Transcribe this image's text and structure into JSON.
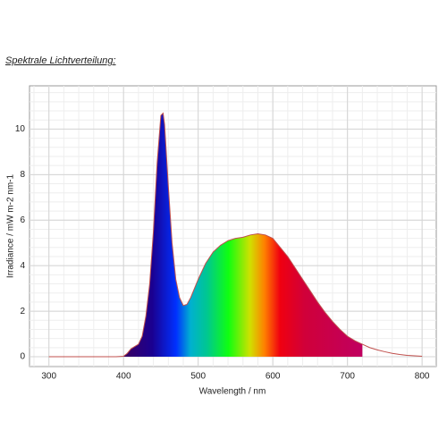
{
  "page_title": "Spektrale Lichtverteilung:",
  "chart_data": {
    "type": "area",
    "xlabel": "Wavelength / nm",
    "ylabel": "Irradiance / mW m-2 nm-1",
    "x": [
      300,
      310,
      320,
      330,
      340,
      350,
      360,
      370,
      380,
      390,
      400,
      405,
      410,
      415,
      420,
      425,
      430,
      435,
      440,
      445,
      450,
      453,
      455,
      460,
      465,
      470,
      475,
      480,
      485,
      490,
      500,
      510,
      520,
      530,
      540,
      550,
      560,
      570,
      580,
      590,
      600,
      610,
      620,
      630,
      640,
      650,
      660,
      670,
      680,
      690,
      700,
      710,
      720,
      730,
      740,
      750,
      760,
      770,
      780,
      790,
      800
    ],
    "series": [
      {
        "color": "#c0504d",
        "values": [
          0,
          0,
          0,
          0,
          0,
          0,
          0,
          0,
          0,
          0,
          0.02,
          0.15,
          0.35,
          0.45,
          0.55,
          0.9,
          1.8,
          3.2,
          5.5,
          8.5,
          10.6,
          10.7,
          10.2,
          7.5,
          5.0,
          3.4,
          2.6,
          2.25,
          2.3,
          2.6,
          3.4,
          4.1,
          4.6,
          4.9,
          5.1,
          5.2,
          5.25,
          5.35,
          5.4,
          5.35,
          5.2,
          4.8,
          4.4,
          3.9,
          3.4,
          2.9,
          2.4,
          1.95,
          1.55,
          1.2,
          0.9,
          0.7,
          0.55,
          0.4,
          0.3,
          0.22,
          0.15,
          0.1,
          0.06,
          0.04,
          0.02
        ]
      }
    ],
    "fill_xlim": [
      400,
      720
    ],
    "xlim": [
      274,
      819
    ],
    "ylim": [
      -0.43,
      11.9
    ],
    "xticks": [
      300,
      400,
      500,
      600,
      700,
      800
    ],
    "yticks": [
      0,
      2,
      4,
      6,
      8,
      10
    ],
    "grid": true
  }
}
